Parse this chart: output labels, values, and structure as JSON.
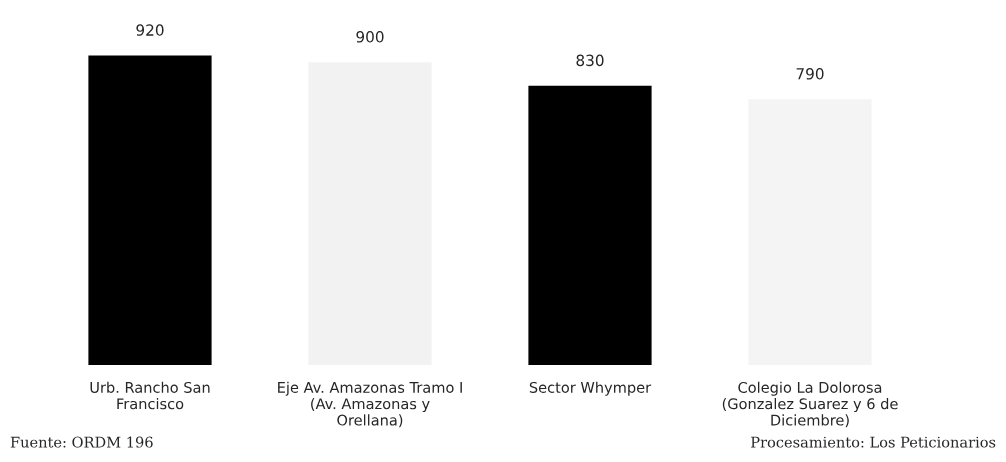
{
  "chart_data": {
    "type": "bar",
    "categories": [
      "Urb. Rancho San\nFrancisco",
      "Eje Av. Amazonas Tramo I\n(Av. Amazonas y\nOrellana)",
      "Sector Whymper",
      "Colegio La Dolorosa\n(Gonzalez Suarez y 6 de\nDiciembre)"
    ],
    "values": [
      920,
      900,
      830,
      790
    ],
    "colors": [
      "#000000",
      "#f2f2f2",
      "#000000",
      "#f4f4f4"
    ],
    "data_labels": true,
    "grid": false,
    "legend": false,
    "tick_labels": "x",
    "annotations": [
      "Fuente: ORDM 196",
      "Procesamiento: Los Peticionarios"
    ]
  }
}
